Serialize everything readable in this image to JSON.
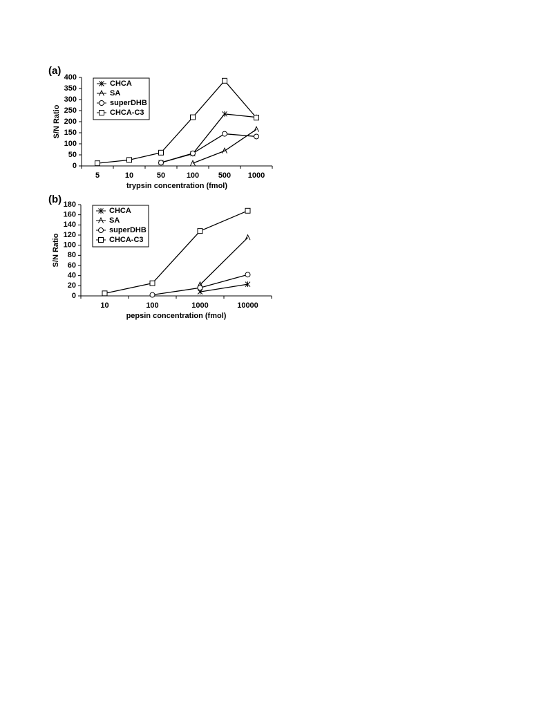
{
  "chart_data": [
    {
      "type": "line",
      "label": "(a)",
      "y_label": "S/N Ratio",
      "x_label": "trypsin concentration (fmol)",
      "categories": [
        "5",
        "10",
        "50",
        "100",
        "500",
        "1000"
      ],
      "ylim": [
        0,
        400
      ],
      "yticks": [
        0,
        50,
        100,
        150,
        200,
        250,
        300,
        350,
        400
      ],
      "series": [
        {
          "name": "CHCA",
          "color": "#000000",
          "marker": "star",
          "values": [
            null,
            null,
            15,
            55,
            235,
            220
          ]
        },
        {
          "name": "SA",
          "color": "#000000",
          "marker": "triangle",
          "values": [
            null,
            null,
            null,
            12,
            68,
            165
          ]
        },
        {
          "name": "superDHB",
          "color": "#000000",
          "marker": "circle",
          "values": [
            null,
            null,
            15,
            57,
            145,
            133
          ]
        },
        {
          "name": "CHCA-C3",
          "color": "#000000",
          "marker": "square",
          "values": [
            12,
            27,
            60,
            220,
            385,
            218
          ]
        }
      ]
    },
    {
      "type": "line",
      "label": "(b)",
      "y_label": "S/N Ratio",
      "x_label": "pepsin concentration (fmol)",
      "categories": [
        "10",
        "100",
        "1000",
        "10000"
      ],
      "ylim": [
        0,
        180
      ],
      "yticks": [
        0,
        20,
        40,
        60,
        80,
        100,
        120,
        140,
        160,
        180
      ],
      "series": [
        {
          "name": "CHCA",
          "color": "#000000",
          "marker": "star",
          "values": [
            null,
            null,
            8,
            23
          ]
        },
        {
          "name": "SA",
          "color": "#000000",
          "marker": "triangle",
          "values": [
            null,
            null,
            22,
            115
          ]
        },
        {
          "name": "superDHB",
          "color": "#000000",
          "marker": "circle",
          "values": [
            null,
            2,
            16,
            42
          ]
        },
        {
          "name": "CHCA-C3",
          "color": "#000000",
          "marker": "square",
          "values": [
            5,
            25,
            128,
            168
          ]
        }
      ]
    }
  ]
}
